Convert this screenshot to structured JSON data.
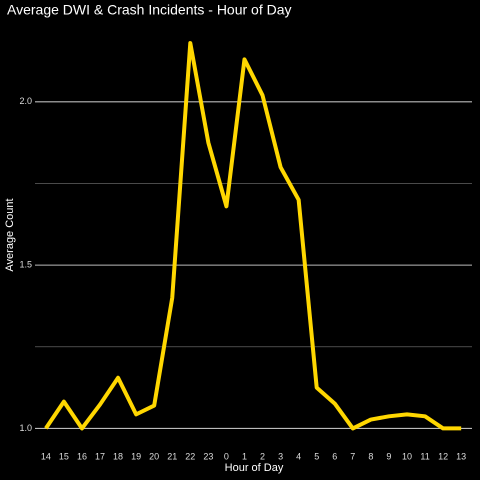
{
  "chart_data": {
    "type": "line",
    "title": "Average DWI & Crash Incidents - Hour of Day",
    "xlabel": "Hour of Day",
    "ylabel": "Average Count",
    "categories": [
      "14",
      "15",
      "16",
      "17",
      "18",
      "19",
      "20",
      "21",
      "22",
      "23",
      "0",
      "1",
      "2",
      "3",
      "4",
      "5",
      "6",
      "7",
      "8",
      "9",
      "10",
      "11",
      "12",
      "13"
    ],
    "series": [
      {
        "name": "Average Count",
        "color": "#FFD700",
        "values": [
          1.0,
          1.082,
          1.0,
          1.073,
          1.155,
          1.043,
          1.07,
          1.4,
          2.18,
          1.875,
          1.68,
          2.13,
          2.02,
          1.8,
          1.7,
          1.125,
          1.076,
          1.0,
          1.027,
          1.037,
          1.043,
          1.037,
          1.0,
          1.0
        ]
      }
    ],
    "ylim": [
      0.94,
      2.22
    ],
    "yticks": [
      {
        "value": 1,
        "label": "1.0"
      },
      1.5,
      {
        "value": 2,
        "label": "2.0"
      }
    ],
    "minor_yticks": [
      1.25,
      1.75
    ],
    "grid": true
  }
}
